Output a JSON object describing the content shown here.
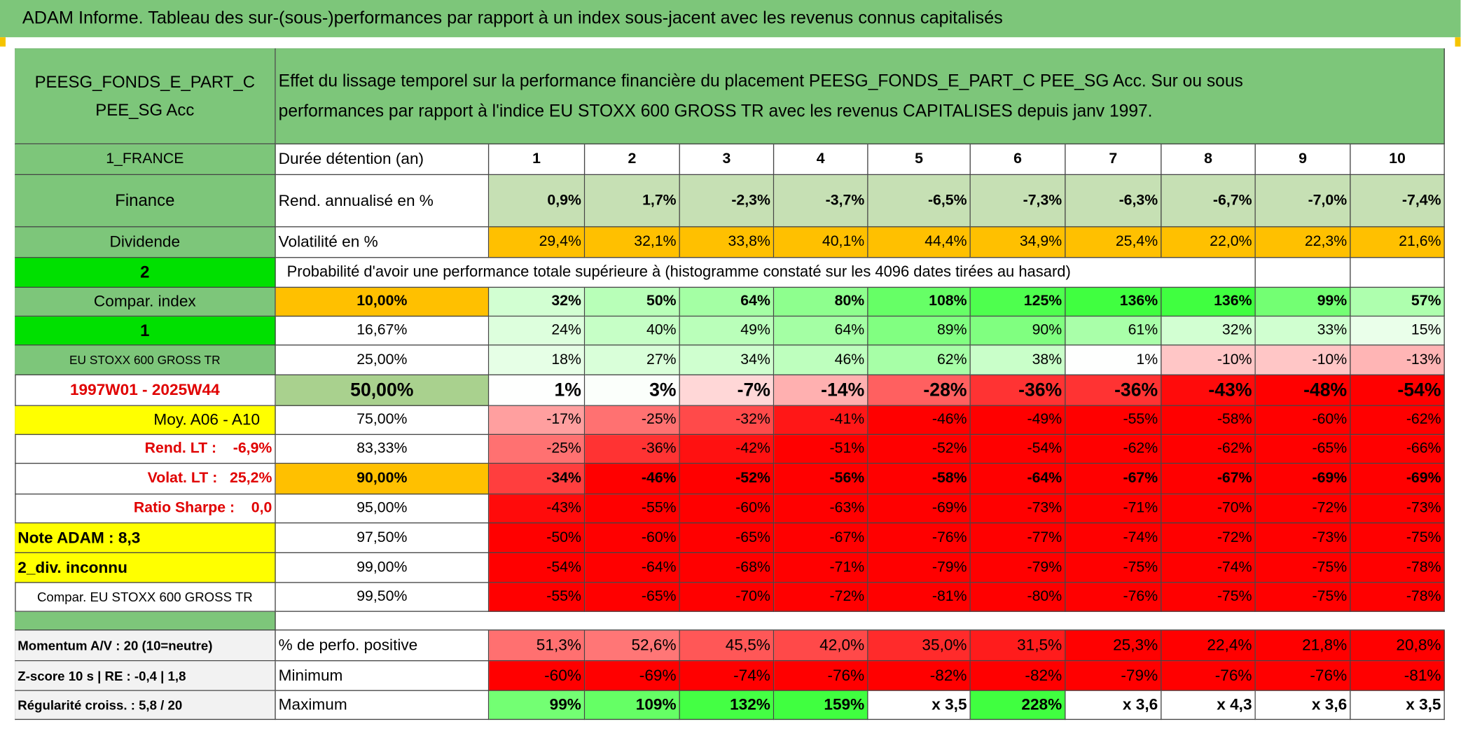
{
  "title": "ADAM Informe. Tableau des sur-(sous-)performances par rapport à un index sous-jacent avec les revenus connus capitalisés",
  "header": {
    "fund": [
      "PEESG_FONDS_E_PART_C",
      "PEE_SG Acc"
    ],
    "description": [
      "Effet du lissage temporel sur la performance financière du placement PEESG_FONDS_E_PART_C PEE_SG Acc. Sur ou sous",
      "performances par rapport à l'indice EU STOXX 600 GROSS TR avec les revenus CAPITALISES depuis janv 1997."
    ]
  },
  "rows": [
    {
      "label": "1_FRANCE",
      "name": "Durée détention (an)",
      "values": [
        1,
        2,
        3,
        4,
        5,
        6,
        7,
        8,
        9,
        10
      ]
    },
    {
      "label": "Finance",
      "name": "Rend. annualisé en %",
      "values": [
        "0,9%",
        "1,7%",
        "-2,3%",
        "-3,7%",
        "-6,5%",
        "-7,3%",
        "-6,3%",
        "-6,7%",
        "-7,0%",
        "-7,4%"
      ]
    },
    {
      "label": "Dividende",
      "name": "Volatilité en %",
      "values": [
        "29,4%",
        "32,1%",
        "33,8%",
        "40,1%",
        "44,4%",
        "34,9%",
        "25,4%",
        "22,0%",
        "22,3%",
        "21,6%"
      ]
    },
    {
      "label": "2",
      "text": "Probabilité d'avoir une performance totale supérieure à (histogramme constaté sur les 4096 dates tirées au hasard)"
    },
    {
      "label": "Compar. index",
      "level": "10,00%",
      "values": [
        "32%",
        "50%",
        "64%",
        "80%",
        "108%",
        "125%",
        "136%",
        "136%",
        "99%",
        "57%"
      ]
    },
    {
      "label": "1",
      "level": "16,67%",
      "values": [
        "24%",
        "40%",
        "49%",
        "64%",
        "89%",
        "90%",
        "61%",
        "32%",
        "33%",
        "15%"
      ]
    },
    {
      "label": "EU STOXX 600 GROSS TR",
      "level": "25,00%",
      "values": [
        "18%",
        "27%",
        "34%",
        "46%",
        "62%",
        "38%",
        "1%",
        "-10%",
        "-10%",
        "-13%"
      ]
    },
    {
      "label": "1997W01 - 2025W44",
      "level": "50,00%",
      "values": [
        "1%",
        "3%",
        "-7%",
        "-14%",
        "-28%",
        "-36%",
        "-36%",
        "-43%",
        "-48%",
        "-54%"
      ]
    },
    {
      "label": "Moy. A06 - A10",
      "level": "75,00%",
      "values": [
        "-17%",
        "-25%",
        "-32%",
        "-41%",
        "-46%",
        "-49%",
        "-55%",
        "-58%",
        "-60%",
        "-62%"
      ]
    },
    {
      "label": "Rend. LT :    -6,9%",
      "level": "83,33%",
      "values": [
        "-25%",
        "-36%",
        "-42%",
        "-51%",
        "-52%",
        "-54%",
        "-62%",
        "-62%",
        "-65%",
        "-66%"
      ]
    },
    {
      "label": "Volat. LT :   25,2%",
      "level": "90,00%",
      "values": [
        "-34%",
        "-46%",
        "-52%",
        "-56%",
        "-58%",
        "-64%",
        "-67%",
        "-67%",
        "-69%",
        "-69%"
      ]
    },
    {
      "label": "Ratio Sharpe :    0,0",
      "level": "95,00%",
      "values": [
        "-43%",
        "-55%",
        "-60%",
        "-63%",
        "-69%",
        "-73%",
        "-71%",
        "-70%",
        "-72%",
        "-73%"
      ]
    },
    {
      "label": "Note ADAM : 8,3",
      "level": "97,50%",
      "values": [
        "-50%",
        "-60%",
        "-65%",
        "-67%",
        "-76%",
        "-77%",
        "-74%",
        "-72%",
        "-73%",
        "-75%"
      ]
    },
    {
      "label": "2_div. inconnu",
      "level": "99,00%",
      "values": [
        "-54%",
        "-64%",
        "-68%",
        "-71%",
        "-79%",
        "-79%",
        "-75%",
        "-74%",
        "-75%",
        "-78%"
      ]
    },
    {
      "label": "Compar. EU STOXX 600 GROSS TR",
      "level": "99,50%",
      "values": [
        "-55%",
        "-65%",
        "-70%",
        "-72%",
        "-81%",
        "-80%",
        "-76%",
        "-75%",
        "-75%",
        "-78%"
      ]
    },
    {
      "label": "Momentum A/V : 20 (10=neutre)",
      "name": "% de perfo. positive",
      "values": [
        "51,3%",
        "52,6%",
        "45,5%",
        "42,0%",
        "35,0%",
        "31,5%",
        "25,3%",
        "22,4%",
        "21,8%",
        "20,8%"
      ]
    },
    {
      "label": "Z-score 10 s | RE : -0,4 | 1,8",
      "name": "Minimum",
      "values": [
        "-60%",
        "-69%",
        "-74%",
        "-76%",
        "-82%",
        "-82%",
        "-79%",
        "-76%",
        "-76%",
        "-81%"
      ]
    },
    {
      "label": "Régularité croiss. : 5,8 / 20",
      "name": "Maximum",
      "values": [
        "99%",
        "109%",
        "132%",
        "159%",
        "x 3,5",
        "228%",
        "x 3,6",
        "x 4,3",
        "x 3,6",
        "x 3,5"
      ]
    }
  ]
}
